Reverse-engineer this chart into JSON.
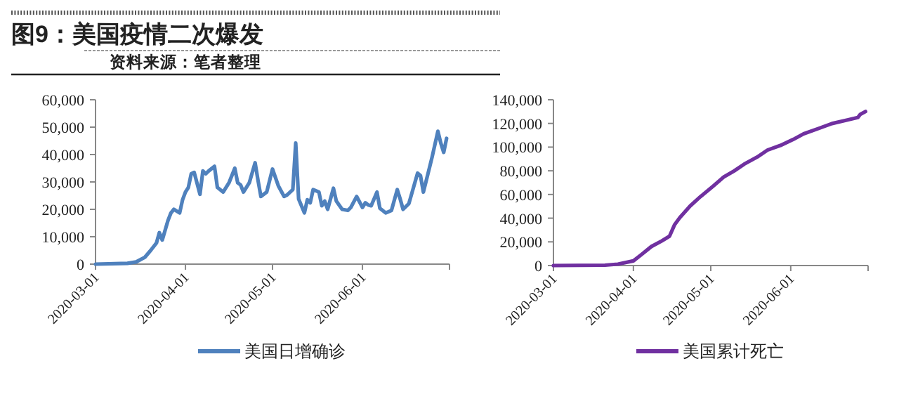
{
  "chart_data": [
    {
      "type": "line",
      "title": "图9：美国疫情二次爆发",
      "annotations": [
        "资料来源：笔者整理"
      ],
      "legend": "bottom",
      "grid": false,
      "x": [
        "2020-03-01",
        "2020-03-12",
        "2020-03-15",
        "2020-03-18",
        "2020-03-20",
        "2020-03-22",
        "2020-03-23",
        "2020-03-24",
        "2020-03-26",
        "2020-03-27",
        "2020-03-28",
        "2020-03-30",
        "2020-03-31",
        "2020-04-01",
        "2020-04-02",
        "2020-04-03",
        "2020-04-04",
        "2020-04-06",
        "2020-04-07",
        "2020-04-08",
        "2020-04-09",
        "2020-04-11",
        "2020-04-12",
        "2020-04-14",
        "2020-04-16",
        "2020-04-18",
        "2020-04-19",
        "2020-04-20",
        "2020-04-21",
        "2020-04-23",
        "2020-04-25",
        "2020-04-26",
        "2020-04-27",
        "2020-04-29",
        "2020-05-01",
        "2020-05-03",
        "2020-05-05",
        "2020-05-06",
        "2020-05-08",
        "2020-05-09",
        "2020-05-10",
        "2020-05-12",
        "2020-05-13",
        "2020-05-14",
        "2020-05-15",
        "2020-05-17",
        "2020-05-18",
        "2020-05-19",
        "2020-05-20",
        "2020-05-22",
        "2020-05-23",
        "2020-05-25",
        "2020-05-27",
        "2020-05-28",
        "2020-05-30",
        "2020-06-01",
        "2020-06-02",
        "2020-06-03",
        "2020-06-04",
        "2020-06-06",
        "2020-06-07",
        "2020-06-09",
        "2020-06-11",
        "2020-06-13",
        "2020-06-14",
        "2020-06-15",
        "2020-06-17",
        "2020-06-18",
        "2020-06-20",
        "2020-06-21",
        "2020-06-22",
        "2020-06-24",
        "2020-06-25",
        "2020-06-27",
        "2020-06-28",
        "2020-06-29",
        "2020-06-30"
      ],
      "xlim": [
        "2020-03-01",
        "2020-07-01"
      ],
      "xticks": [
        {
          "value": "2020-03-01",
          "label": "2020-03-01"
        },
        {
          "value": "2020-04-01",
          "label": "2020-04-01"
        },
        {
          "value": "2020-05-01",
          "label": "2020-05-01"
        },
        {
          "value": "2020-06-01",
          "label": "2020-06-01"
        },
        {
          "value": "2020-07-01",
          "label": null
        }
      ],
      "ylim": [
        0,
        60000
      ],
      "yticks": [
        {
          "value": 0,
          "label": "0"
        },
        {
          "value": 10000,
          "label": "10,000"
        },
        {
          "value": 20000,
          "label": "20,000"
        },
        {
          "value": 30000,
          "label": "30,000"
        },
        {
          "value": 40000,
          "label": "40,000"
        },
        {
          "value": 50000,
          "label": "50,000"
        },
        {
          "value": 60000,
          "label": "60,000"
        }
      ],
      "series": [
        {
          "name": "美国日增确诊",
          "color": "#4f81bd",
          "values": [
            0,
            300,
            800,
            2500,
            5000,
            7700,
            11500,
            8800,
            16000,
            18700,
            20000,
            18700,
            23500,
            26300,
            28000,
            33000,
            33500,
            25500,
            34000,
            33000,
            34000,
            35700,
            28000,
            26300,
            29700,
            35000,
            29700,
            28900,
            26300,
            29700,
            37000,
            30600,
            24700,
            26300,
            34700,
            28600,
            24700,
            25200,
            27200,
            44200,
            23800,
            18700,
            23500,
            22400,
            27200,
            26300,
            21300,
            23000,
            20000,
            27700,
            23000,
            20000,
            19600,
            20700,
            24700,
            20700,
            22400,
            21600,
            21300,
            26300,
            20400,
            18700,
            19600,
            27200,
            23800,
            20000,
            22100,
            25800,
            33200,
            32300,
            26300,
            34800,
            39100,
            48500,
            44200,
            40800,
            45900
          ]
        }
      ]
    },
    {
      "type": "line",
      "legend": "bottom",
      "grid": false,
      "x": [
        "2020-03-01",
        "2020-03-21",
        "2020-03-26",
        "2020-04-01",
        "2020-04-04",
        "2020-04-08",
        "2020-04-12",
        "2020-04-15",
        "2020-04-17",
        "2020-04-19",
        "2020-04-23",
        "2020-04-27",
        "2020-05-02",
        "2020-05-06",
        "2020-05-10",
        "2020-05-14",
        "2020-05-19",
        "2020-05-23",
        "2020-05-28",
        "2020-06-02",
        "2020-06-06",
        "2020-06-12",
        "2020-06-17",
        "2020-06-23",
        "2020-06-27",
        "2020-06-28",
        "2020-06-30"
      ],
      "xlim": [
        "2020-03-01",
        "2020-07-01"
      ],
      "xticks": [
        {
          "value": "2020-03-01",
          "label": "2020-03-01"
        },
        {
          "value": "2020-04-01",
          "label": "2020-04-01"
        },
        {
          "value": "2020-05-01",
          "label": "2020-05-01"
        },
        {
          "value": "2020-06-01",
          "label": "2020-06-01"
        },
        {
          "value": "2020-07-01",
          "label": null
        }
      ],
      "ylim": [
        0,
        140000
      ],
      "yticks": [
        {
          "value": 0,
          "label": "0"
        },
        {
          "value": 20000,
          "label": "20,000"
        },
        {
          "value": 40000,
          "label": "40,000"
        },
        {
          "value": 60000,
          "label": "60,000"
        },
        {
          "value": 80000,
          "label": "80,000"
        },
        {
          "value": 100000,
          "label": "100,000"
        },
        {
          "value": 120000,
          "label": "120,000"
        },
        {
          "value": 140000,
          "label": "140,000"
        }
      ],
      "series": [
        {
          "name": "美国累计死亡",
          "color": "#7030a0",
          "values": [
            0,
            300,
            1200,
            3900,
            9000,
            16100,
            20800,
            24800,
            34600,
            40500,
            50300,
            58200,
            67200,
            74700,
            79800,
            85700,
            91600,
            97500,
            101400,
            106500,
            111200,
            115900,
            119900,
            123000,
            125000,
            127700,
            130100
          ]
        }
      ]
    }
  ]
}
